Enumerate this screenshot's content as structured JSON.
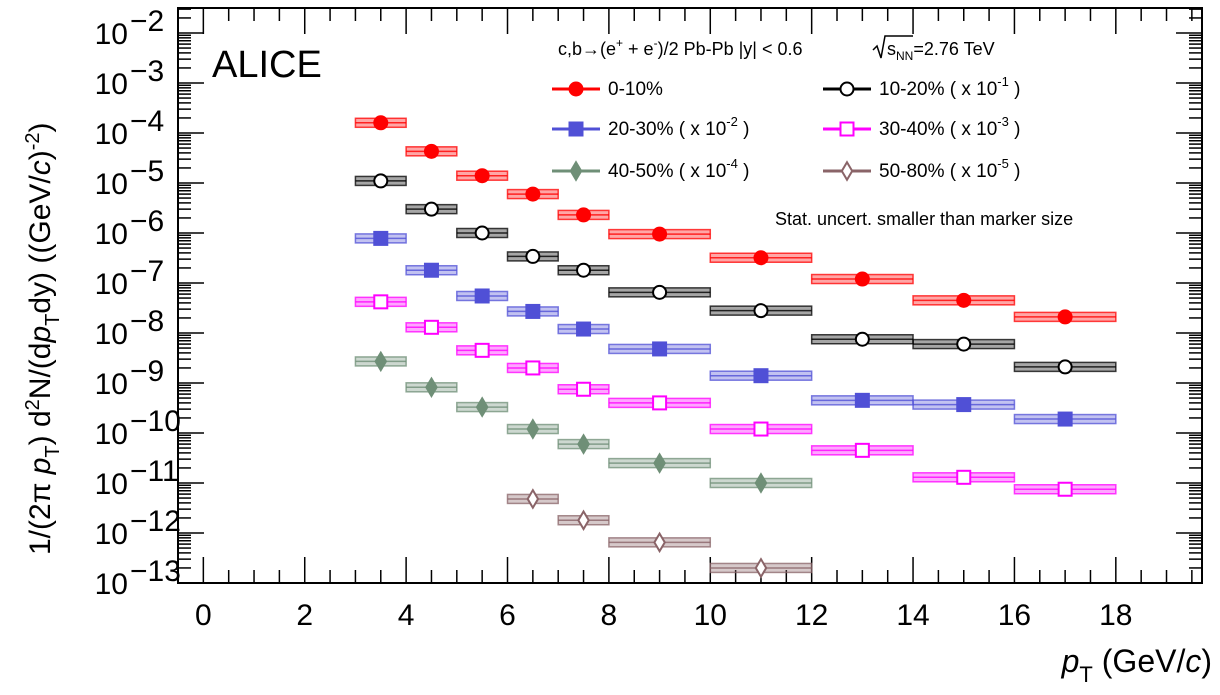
{
  "chart_data": {
    "type": "scatter",
    "y_scale": "log",
    "xlim": [
      -0.5,
      19.7
    ],
    "ylim_exp": [
      -13,
      -1.5
    ],
    "x_ticks": [
      0,
      2,
      4,
      6,
      8,
      10,
      12,
      14,
      16,
      18
    ],
    "x_tick_labels": [
      "0",
      "2",
      "4",
      "6",
      "8",
      "10",
      "12",
      "14",
      "16",
      "18"
    ],
    "y_ticks": [
      -13,
      -12,
      -11,
      -10,
      -9,
      -8,
      -7,
      -6,
      -5,
      -4,
      -3,
      -2
    ],
    "x_bins": [
      [
        3,
        4
      ],
      [
        4,
        5
      ],
      [
        5,
        6
      ],
      [
        6,
        7
      ],
      [
        7,
        8
      ],
      [
        8,
        10
      ],
      [
        10,
        12
      ],
      [
        12,
        14
      ],
      [
        14,
        16
      ],
      [
        16,
        18
      ]
    ],
    "series": [
      {
        "name": "0-10%",
        "color": "#ff0000",
        "marker": "filled-circle",
        "values": [
          0.00016,
          4.3e-05,
          1.4e-05,
          6e-06,
          2.3e-06,
          9.5e-07,
          3.2e-07,
          1.2e-07,
          4.5e-08,
          2.1e-08
        ]
      },
      {
        "name": "10-20% ( x 10",
        "name_sup": "-1",
        "name_tail": " )",
        "color": "#000000",
        "marker": "open-circle",
        "values": [
          1.1e-05,
          3e-06,
          1e-06,
          3.4e-07,
          1.8e-07,
          6.5e-08,
          2.8e-08,
          7.5e-09,
          6e-09,
          2.1e-09
        ]
      },
      {
        "name": "20-30% ( x 10",
        "name_sup": "-2",
        "name_tail": " )",
        "color": "#5050d6",
        "marker": "filled-square",
        "values": [
          7.8e-07,
          1.8e-07,
          5.5e-08,
          2.7e-08,
          1.2e-08,
          4.8e-09,
          1.4e-09,
          4.5e-10,
          3.7e-10,
          1.9e-10
        ]
      },
      {
        "name": "30-40% ( x 10",
        "name_sup": "-3",
        "name_tail": " )",
        "color": "#ff00ff",
        "marker": "open-square",
        "values": [
          4.2e-08,
          1.3e-08,
          4.5e-09,
          2e-09,
          7.5e-10,
          4e-10,
          1.2e-10,
          4.5e-11,
          1.3e-11,
          7.5e-12
        ]
      },
      {
        "name": "40-50% ( x 10",
        "name_sup": "-4",
        "name_tail": " )",
        "color": "#6f8f77",
        "marker": "filled-diamond",
        "values": [
          2.7e-09,
          8.2e-10,
          3.3e-10,
          1.2e-10,
          6e-11,
          2.5e-11,
          1e-11,
          null,
          null,
          null
        ]
      },
      {
        "name": "50-80% ( x 10",
        "name_sup": "-5",
        "name_tail": " )",
        "color": "#8a6468",
        "marker": "open-diamond",
        "values": [
          null,
          null,
          null,
          4.8e-12,
          1.8e-12,
          6.5e-13,
          2e-13,
          null,
          null,
          null
        ]
      }
    ]
  },
  "header": {
    "experiment": "ALICE",
    "system_pre": "c,b→(e",
    "system_sup1": "+",
    "system_mid": " + e",
    "system_sup2": "-",
    "system_post": ")/2  Pb-Pb |y| < 0.6 ",
    "sqrt_s": "s",
    "sqrt_s_sub": "NN",
    "energy": "=2.76 TeV",
    "note": "Stat. uncert. smaller than marker size"
  },
  "axes": {
    "x_label_var": "p",
    "x_label_sub": "T",
    "x_label_unit": " (GeV/",
    "x_label_c": "c",
    "x_label_end": ")",
    "y_label": "1/(2π p_T) d²N/(dp_T dy) ((GeV/c)⁻²)"
  }
}
